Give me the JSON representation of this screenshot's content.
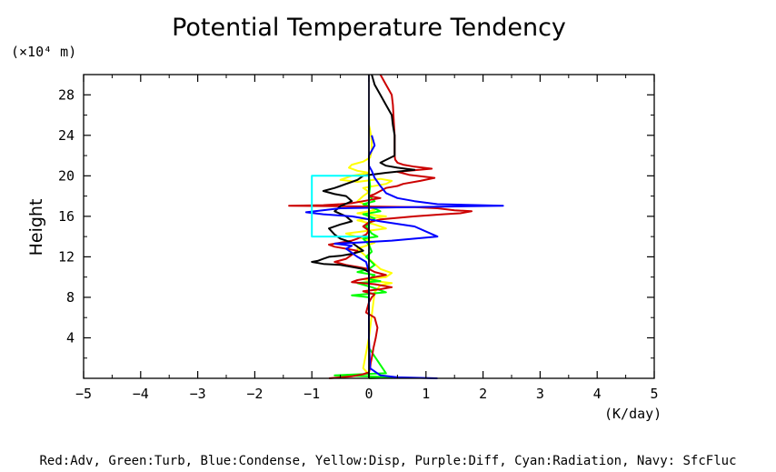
{
  "chart_data": {
    "type": "line",
    "title": "Potential Temperature Tendency",
    "y_unit_label": "(×10⁴ m)",
    "ylabel": "Height",
    "xlabel": "(K/day)",
    "xlim": [
      -5,
      5
    ],
    "ylim": [
      0,
      30
    ],
    "xticks": [
      -5,
      -4,
      -3,
      -2,
      -1,
      0,
      1,
      2,
      3,
      4,
      5
    ],
    "xtick_labels": [
      "−5",
      "−4",
      "−3",
      "−2",
      "−1",
      "0",
      "1",
      "2",
      "3",
      "4",
      "5"
    ],
    "yticks": [
      4,
      8,
      12,
      16,
      20,
      24,
      28
    ],
    "ytick_labels": [
      "4",
      "8",
      "12",
      "16",
      "20",
      "24",
      "28"
    ],
    "grid": false,
    "legend_text": "Red:Adv, Green:Turb, Blue:Condense, Yellow:Disp, Purple:Diff, Cyan:Radiation, Navy: SfcFluc",
    "series": [
      {
        "color": "#ffff00",
        "x": [
          0,
          0.02,
          0.05,
          0.05,
          0.02,
          -0.1,
          -0.3,
          -0.35,
          -0.2,
          0.0,
          -0.3,
          -0.5,
          -0.2,
          0.2,
          0.4,
          0.3,
          -0.1,
          0.0,
          -0.1,
          -0.2,
          0.0,
          0.1,
          -0.2,
          0.3,
          -0.2,
          0.1,
          0.3,
          -0.4,
          -0.1,
          0.1,
          -0.2,
          0.2,
          0.4,
          0.3,
          -0.1,
          0.1,
          0.4,
          0.2,
          0.1,
          0.0,
          -0.1,
          0.0,
          0.0
        ],
        "y": [
          25,
          24.5,
          23.5,
          22.5,
          21.8,
          21.4,
          21.1,
          20.8,
          20.5,
          20.3,
          20.0,
          19.6,
          19.4,
          19.7,
          19.5,
          19.2,
          18.8,
          18.4,
          18.0,
          17.5,
          17.0,
          16.6,
          16.3,
          16.0,
          15.6,
          15.2,
          14.8,
          14.3,
          13.8,
          13.4,
          12.8,
          10.8,
          10.4,
          10.0,
          9.8,
          9.6,
          9.4,
          9.2,
          8.5,
          4.0,
          1.0,
          0.4,
          0
        ]
      },
      {
        "color": "#00ff00",
        "x": [
          0,
          0.02,
          0,
          0.1,
          -0.1,
          0.05,
          0.2,
          -0.1,
          0.1,
          -0.05,
          0.05,
          0.15,
          -0.1,
          0.0,
          0.05,
          -0.05,
          0.1,
          0.0,
          -0.2,
          0.1,
          0.0,
          0.2,
          -0.2,
          0.05,
          0.3,
          -0.3,
          0.0,
          0.0,
          0.3,
          -0.6,
          0.0,
          0.4,
          0.0
        ],
        "y": [
          20,
          19,
          18,
          17.5,
          17.2,
          16.9,
          16.5,
          16.2,
          15.8,
          15.0,
          14.3,
          14.0,
          13.8,
          13.2,
          12.5,
          12.0,
          11.2,
          10.8,
          10.5,
          10.2,
          9.8,
          9.6,
          9.4,
          9.0,
          8.5,
          8.2,
          8.0,
          3.0,
          0.5,
          0.3,
          0.2,
          0.1,
          0
        ]
      },
      {
        "color": "#cc0000",
        "x": [
          0.2,
          0.3,
          0.4,
          0.42,
          0.43,
          0.44,
          0.45,
          0.45,
          0.45,
          0.45,
          0.46,
          0.5,
          0.6,
          0.8,
          1.1,
          0.5,
          0.7,
          1.15,
          0.9,
          0.6,
          0.5,
          0.3,
          0.2,
          0.1,
          0.0,
          0.2,
          -0.1,
          -0.3,
          -0.5,
          -0.8,
          -1.4,
          -0.5,
          0.8,
          1.2,
          1.5,
          1.8,
          1.6,
          1.3,
          0.8,
          0.2,
          0.0,
          -0.1,
          0.0,
          -0.05,
          -0.2,
          -0.3,
          -0.5,
          -0.7,
          -0.6,
          -0.4,
          -0.2,
          -0.3,
          -0.4,
          -0.6,
          -0.4,
          -0.2,
          0.0,
          0.1,
          0.3,
          0.0,
          -0.2,
          -0.3,
          0.1,
          0.4,
          0.2,
          -0.1,
          0.1,
          0.05,
          0.0,
          -0.05,
          0.1,
          0.15,
          0.12,
          0.08,
          0.05,
          0.03,
          0.02,
          0.0,
          -0.1,
          -0.3,
          -0.7
        ],
        "y": [
          30,
          29,
          28,
          27,
          26,
          25,
          24,
          23,
          22.5,
          22,
          21.6,
          21.3,
          21.1,
          20.9,
          20.7,
          20.4,
          20.1,
          19.8,
          19.5,
          19.2,
          19.0,
          18.8,
          18.5,
          18.2,
          18.0,
          17.8,
          17.5,
          17.3,
          17.2,
          17.1,
          17.05,
          17.0,
          16.9,
          16.8,
          16.6,
          16.5,
          16.3,
          16.2,
          16.0,
          15.7,
          15.4,
          15.0,
          14.6,
          14.2,
          13.8,
          13.6,
          13.4,
          13.2,
          13.0,
          12.8,
          12.6,
          12.2,
          11.8,
          11.5,
          11.2,
          11.0,
          10.8,
          10.5,
          10.2,
          9.9,
          9.7,
          9.5,
          9.3,
          9.0,
          8.8,
          8.6,
          8.3,
          8.0,
          7.5,
          6.5,
          6.0,
          5.0,
          4.0,
          3.0,
          2.0,
          1.5,
          1.0,
          0.6,
          0.4,
          0.2,
          0
        ]
      },
      {
        "color": "#000000",
        "x": [
          0.05,
          0.1,
          0.2,
          0.3,
          0.4,
          0.42,
          0.45,
          0.45,
          0.45,
          0.45,
          0.2,
          0.3,
          0.5,
          0.8,
          0.3,
          -0.1,
          -0.2,
          -0.3,
          -0.5,
          -0.6,
          -0.8,
          -0.6,
          -0.4,
          -0.3,
          -0.5,
          -0.6,
          -0.4,
          -0.3,
          -0.5,
          -0.7,
          -0.6,
          -0.5,
          -0.3,
          -0.2,
          -0.1,
          -0.3,
          -0.5,
          -0.7,
          -0.8,
          -0.9,
          -1.0,
          -0.8,
          -0.5,
          -0.3,
          -0.1,
          0.0
        ],
        "y": [
          30,
          29,
          28,
          27,
          26,
          25,
          24,
          23,
          22.5,
          22,
          21.3,
          21.0,
          20.8,
          20.6,
          20.3,
          20.0,
          19.6,
          19.4,
          19.0,
          18.8,
          18.5,
          18.2,
          18.0,
          17.5,
          17.0,
          16.5,
          16.0,
          15.5,
          15.2,
          14.8,
          14.2,
          13.8,
          13.4,
          13.0,
          12.6,
          12.3,
          12.1,
          12.0,
          11.8,
          11.6,
          11.5,
          11.3,
          11.2,
          11.0,
          10.8,
          10.5
        ]
      },
      {
        "color": "#0000ff",
        "x": [
          0.05,
          0.1,
          0.0,
          0.0,
          0.05,
          0.1,
          0.2,
          0.3,
          0.5,
          0.8,
          1.2,
          2.35,
          -0.5,
          -1.1,
          -0.8,
          -0.3,
          0.2,
          0.8,
          1.2,
          0.4,
          -0.2,
          -0.6,
          -0.3,
          -0.4,
          -0.3,
          -0.2,
          -0.05,
          0.0,
          0.0,
          0.0,
          0.02,
          0.2,
          0.5,
          1.2
        ],
        "y": [
          24,
          23,
          22,
          21,
          20.5,
          19.8,
          19.0,
          18.3,
          17.8,
          17.5,
          17.2,
          17.05,
          16.8,
          16.4,
          16.2,
          16.0,
          15.5,
          15.0,
          14.0,
          13.6,
          13.4,
          13.3,
          13.1,
          12.8,
          12.4,
          12.0,
          11.5,
          10.5,
          8.0,
          4.0,
          1.0,
          0.3,
          0.1,
          0
        ]
      },
      {
        "color": "#00ffff",
        "x": [
          0,
          -1.0,
          -1.0,
          0,
          0
        ],
        "y": [
          20,
          20,
          14,
          14,
          20
        ]
      },
      {
        "color": "#000080",
        "x": [
          0,
          0
        ],
        "y": [
          0,
          30
        ]
      }
    ]
  }
}
